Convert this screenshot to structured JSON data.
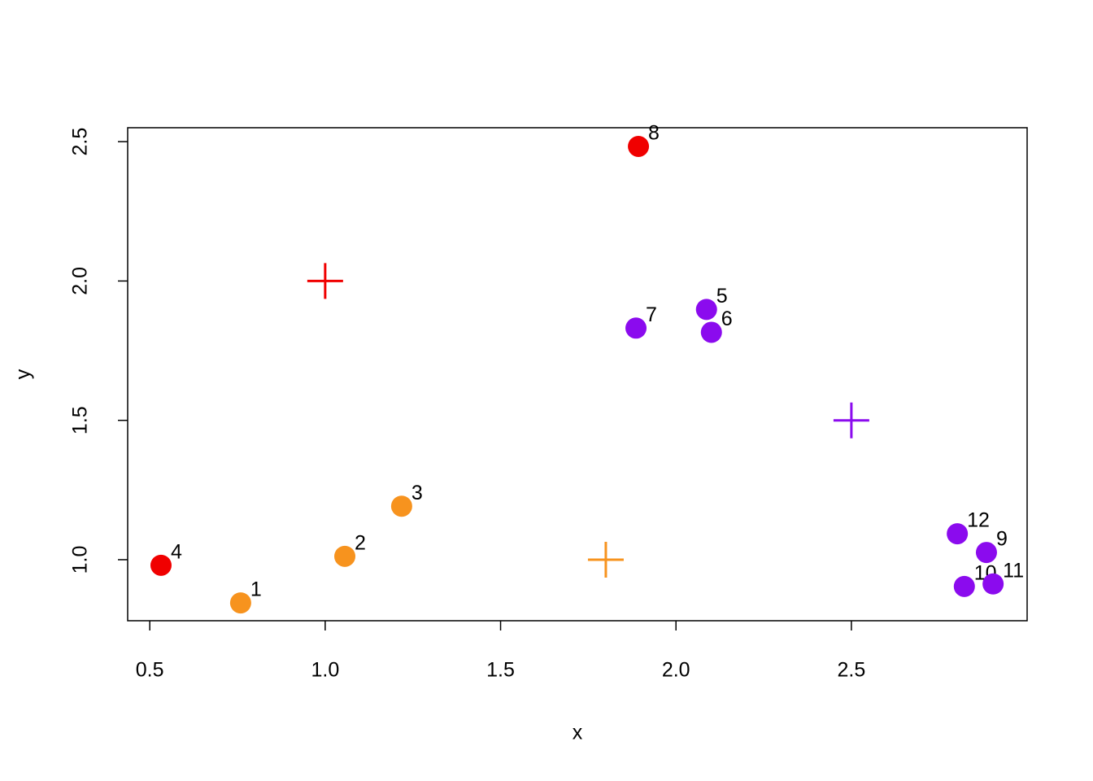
{
  "chart_data": {
    "type": "scatter",
    "x_label": "x",
    "y_label": "y",
    "x": [
      0.759,
      1.056,
      1.218,
      0.532,
      2.087,
      2.101,
      1.886,
      1.893,
      2.885,
      2.822,
      2.904,
      2.802
    ],
    "y": [
      0.845,
      1.012,
      1.192,
      0.98,
      1.898,
      1.816,
      1.831,
      2.483,
      1.026,
      0.904,
      0.913,
      1.093
    ],
    "point_labels": [
      "1",
      "2",
      "3",
      "4",
      "5",
      "6",
      "7",
      "8",
      "9",
      "10",
      "11",
      "12"
    ],
    "point_colors": [
      "#F7931E",
      "#F7931E",
      "#F7931E",
      "#F00000",
      "#8B0BEE",
      "#8B0BEE",
      "#8B0BEE",
      "#F00000",
      "#8B0BEE",
      "#8B0BEE",
      "#8B0BEE",
      "#8B0BEE"
    ],
    "centers": {
      "x": [
        1,
        1.8,
        2.5
      ],
      "y": [
        2,
        1,
        1.5
      ],
      "colors": [
        "#F00000",
        "#F7931E",
        "#8B0BEE"
      ]
    },
    "xlim": [
      0.437,
      3.001
    ],
    "ylim": [
      0.781,
      2.55
    ],
    "xticks": [
      0.5,
      {
        "value": 1,
        "label": "1.0"
      },
      1.5,
      {
        "value": 2,
        "label": "2.0"
      },
      2.5
    ],
    "yticks": [
      {
        "value": 1,
        "label": "1.0"
      },
      1.5,
      {
        "value": 2,
        "label": "2.0"
      },
      2.5
    ]
  }
}
